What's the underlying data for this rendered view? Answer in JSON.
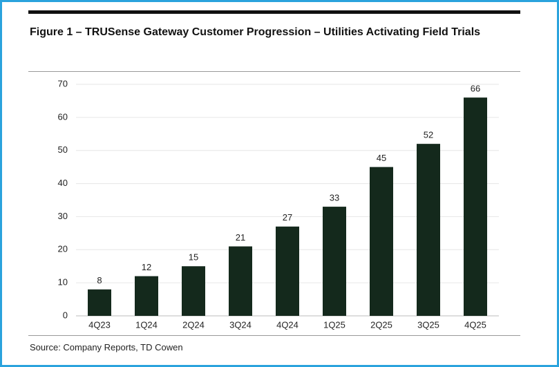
{
  "chart_data": {
    "type": "bar",
    "title": "Figure 1 – TRUSense Gateway Customer Progression – Utilities Activating Field Trials",
    "categories": [
      "4Q23",
      "1Q24",
      "2Q24",
      "3Q24",
      "4Q24",
      "1Q25",
      "2Q25",
      "3Q25",
      "4Q25"
    ],
    "values": [
      8,
      12,
      15,
      21,
      27,
      33,
      45,
      52,
      66
    ],
    "color": "#14291c",
    "ylim": [
      0,
      70
    ],
    "yticks": [
      0,
      10,
      20,
      30,
      40,
      50,
      60,
      70
    ],
    "grid": true,
    "source": "Source: Company Reports, TD Cowen"
  }
}
